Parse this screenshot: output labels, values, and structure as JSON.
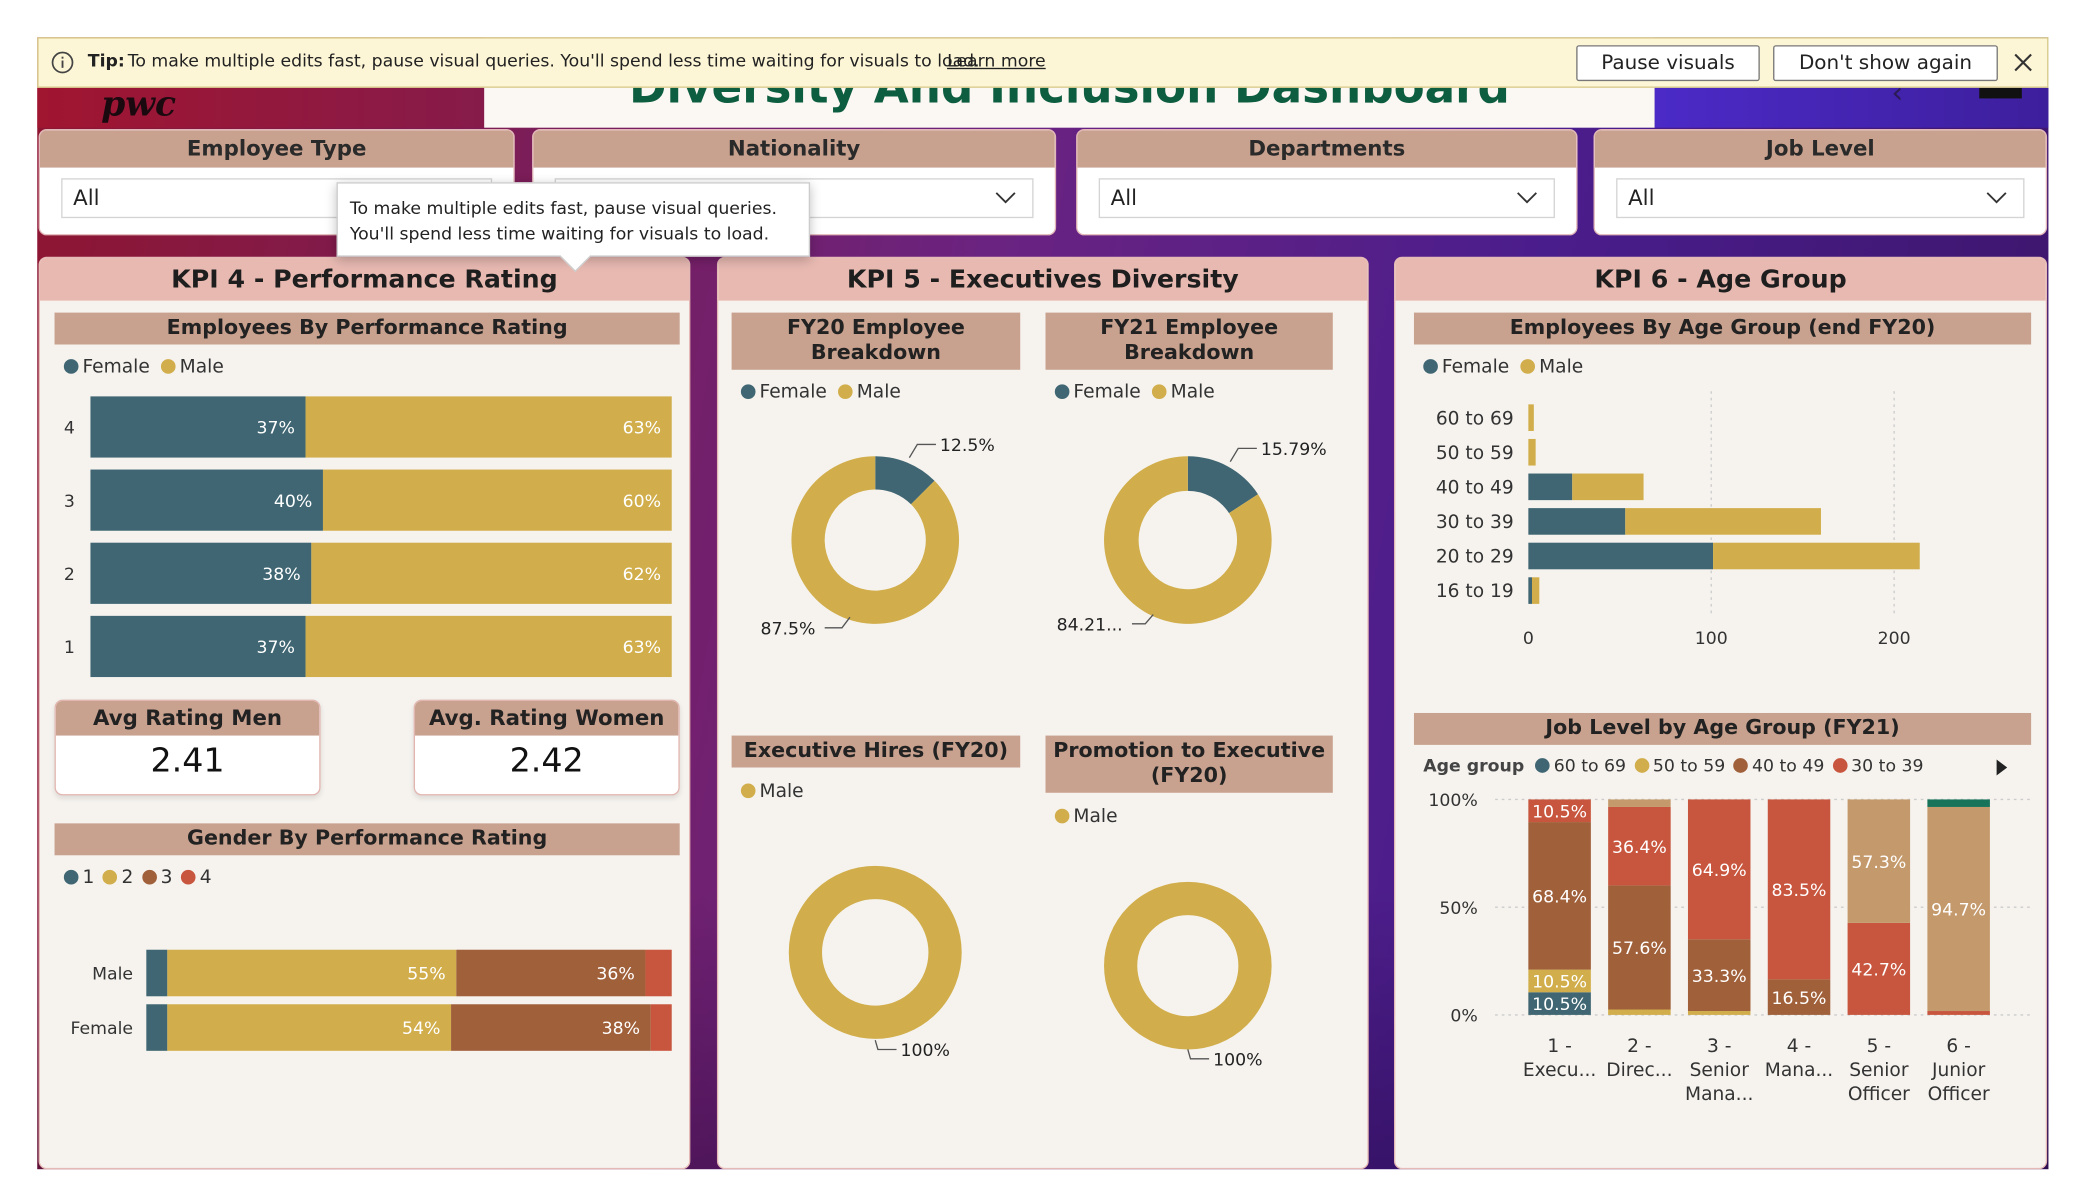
{
  "tip": {
    "label": "Tip:",
    "text": "To make multiple edits fast, pause visual queries. You'll spend less time waiting for visuals to load.",
    "link": "Learn more",
    "pause_button": "Pause visuals",
    "dont_show_button": "Don't show again"
  },
  "header": {
    "logo": "pwc",
    "title": "Diversity And Inclusion Dashboard"
  },
  "tooltip": {
    "line1": "To make multiple edits fast, pause visual queries.",
    "line2": "You'll spend less time waiting for visuals to load."
  },
  "filters": [
    {
      "label": "Employee Type",
      "value": "All"
    },
    {
      "label": "Nationality",
      "value": ""
    },
    {
      "label": "Departments",
      "value": "All"
    },
    {
      "label": "Job Level",
      "value": "All"
    }
  ],
  "colors": {
    "female": "#3f6672",
    "male": "#d1ae4b",
    "rating1": "#3f6672",
    "rating2": "#d1ae4b",
    "rating3": "#a0603a",
    "rating4": "#c8563e",
    "age6069": "#3f6672",
    "age5059": "#d1ae4b",
    "age4049": "#a0603a",
    "age3039": "#c8563e",
    "age2029": "#c49a6c",
    "age1619": "#17735a"
  },
  "kpi4": {
    "title": "KPI 4 - Performance Rating",
    "perf_chart": {
      "title": "Employees By Performance Rating",
      "legend": [
        "Female",
        "Male"
      ],
      "rows": [
        {
          "label": "4",
          "female": 37,
          "male": 63,
          "female_label": "37%",
          "male_label": "63%"
        },
        {
          "label": "3",
          "female": 40,
          "male": 60,
          "female_label": "40%",
          "male_label": "60%"
        },
        {
          "label": "2",
          "female": 38,
          "male": 62,
          "female_label": "38%",
          "male_label": "62%"
        },
        {
          "label": "1",
          "female": 37,
          "male": 63,
          "female_label": "37%",
          "male_label": "63%"
        }
      ]
    },
    "avg_men": {
      "label": "Avg Rating Men",
      "value": "2.41"
    },
    "avg_women": {
      "label": "Avg. Rating Women",
      "value": "2.42"
    },
    "gender_chart": {
      "title": "Gender By Performance Rating",
      "legend": [
        "1",
        "2",
        "3",
        "4"
      ],
      "rows": [
        {
          "label": "Male",
          "values": [
            4,
            55,
            36,
            5
          ],
          "labels": [
            "",
            "55%",
            "36%",
            ""
          ]
        },
        {
          "label": "Female",
          "values": [
            4,
            54,
            38,
            4
          ],
          "labels": [
            "",
            "54%",
            "38%",
            ""
          ]
        }
      ]
    }
  },
  "kpi5": {
    "title": "KPI 5 - Executives Diversity",
    "fy20": {
      "title": "FY20 Employee Breakdown",
      "legend": [
        "Female",
        "Male"
      ],
      "female": 12.5,
      "male": 87.5,
      "female_label": "12.5%",
      "male_label": "87.5%"
    },
    "fy21": {
      "title": "FY21 Employee Breakdown",
      "legend": [
        "Female",
        "Male"
      ],
      "female": 15.79,
      "male": 84.21,
      "female_label": "15.79%",
      "male_label": "84.21..."
    },
    "hires": {
      "title": "Executive Hires (FY20)",
      "legend": [
        "Male"
      ],
      "male": 100,
      "male_label": "100%"
    },
    "promo": {
      "title": "Promotion to Executive (FY20)",
      "legend": [
        "Male"
      ],
      "male": 100,
      "male_label": "100%"
    }
  },
  "kpi6": {
    "title": "KPI 6 - Age Group",
    "age_chart": {
      "title": "Employees By Age Group (end FY20)",
      "legend": [
        "Female",
        "Male"
      ],
      "xticks": [
        "0",
        "100",
        "200"
      ],
      "xmax": 240,
      "rows": [
        {
          "label": "60 to 69",
          "female": 0,
          "male": 3
        },
        {
          "label": "50 to 59",
          "female": 0,
          "male": 4
        },
        {
          "label": "40 to 49",
          "female": 24,
          "male": 39
        },
        {
          "label": "30 to 39",
          "female": 53,
          "male": 107
        },
        {
          "label": "20 to 29",
          "female": 101,
          "male": 113
        },
        {
          "label": "16 to 19",
          "female": 2,
          "male": 4
        }
      ]
    },
    "job_chart": {
      "title": "Job Level by Age Group (FY21)",
      "legend_title": "Age group",
      "legend": [
        "60 to 69",
        "50 to 59",
        "40 to 49",
        "30 to 39"
      ],
      "yticks": [
        "100%",
        "50%",
        "0%"
      ],
      "categories": [
        {
          "line1": "1 -",
          "line2": "Execu...",
          "line3": ""
        },
        {
          "line1": "2 -",
          "line2": "Direc...",
          "line3": ""
        },
        {
          "line1": "3 -",
          "line2": "Senior",
          "line3": "Mana..."
        },
        {
          "line1": "4 -",
          "line2": "Mana...",
          "line3": ""
        },
        {
          "line1": "5 -",
          "line2": "Senior",
          "line3": "Officer"
        },
        {
          "line1": "6 -",
          "line2": "Junior",
          "line3": "Officer"
        }
      ],
      "series_order": [
        "age6069",
        "age5059",
        "age4049",
        "age3039",
        "age2029",
        "age1619"
      ],
      "stacks": [
        [
          10.5,
          10.5,
          68.4,
          10.5,
          0,
          0
        ],
        [
          0,
          2.5,
          57.6,
          36.4,
          3.5,
          0
        ],
        [
          0,
          1.8,
          33.3,
          64.9,
          0,
          0
        ],
        [
          0,
          0,
          16.5,
          83.5,
          0,
          0
        ],
        [
          0,
          0,
          0,
          42.7,
          57.3,
          0
        ],
        [
          0,
          0,
          0,
          1.8,
          94.7,
          3.5
        ]
      ],
      "labels": [
        [
          "10.5%",
          "10.5%",
          "68.4%",
          "10.5%",
          "",
          ""
        ],
        [
          "",
          "",
          "57.6%",
          "36.4%",
          "",
          ""
        ],
        [
          "",
          "",
          "33.3%",
          "64.9%",
          "",
          ""
        ],
        [
          "",
          "",
          "16.5%",
          "83.5%",
          "",
          ""
        ],
        [
          "",
          "",
          "",
          "42.7%",
          "57.3%",
          ""
        ],
        [
          "",
          "",
          "",
          "",
          "94.7%",
          ""
        ]
      ]
    }
  }
}
